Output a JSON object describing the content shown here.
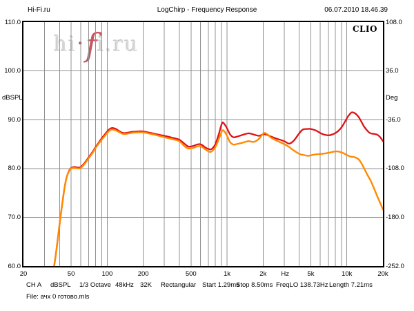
{
  "header": {
    "site": "Hi-Fi.ru",
    "title": "LogChirp - Frequency Response",
    "datetime": "06.07.2010 18.46.39"
  },
  "chart": {
    "brand": "CLIO",
    "y_left_unit": "dBSPL",
    "y_right_unit": "Deg",
    "watermark": {
      "pre": "hi",
      "dot": "·",
      "f": "f",
      "post": "i.ru"
    }
  },
  "chart_data": {
    "type": "line",
    "title": "LogChirp - Frequency Response",
    "grid": true,
    "grid_color": "#909090",
    "x_axis": {
      "scale": "log",
      "min": 20,
      "max": 20000,
      "unit": "Hz",
      "tick_labels": [
        {
          "label": "20",
          "f": 20
        },
        {
          "label": "50",
          "f": 50
        },
        {
          "label": "100",
          "f": 100
        },
        {
          "label": "200",
          "f": 200
        },
        {
          "label": "500",
          "f": 500
        },
        {
          "label": "1k",
          "f": 1000
        },
        {
          "label": "2k",
          "f": 2000
        },
        {
          "label": "Hz",
          "f": 3050
        },
        {
          "label": "5k",
          "f": 5000
        },
        {
          "label": "10k",
          "f": 10000
        },
        {
          "label": "20k",
          "f": 20000
        }
      ]
    },
    "y_axis_left": {
      "label": "dBSPL",
      "min": 60,
      "max": 110,
      "ticks": [
        110,
        100,
        90,
        80,
        70,
        60
      ],
      "tick_labels": [
        "110.0",
        "100.0",
        "90.0",
        "80.0",
        "70.0",
        "60.0"
      ]
    },
    "y_axis_right": {
      "label": "Deg",
      "min": -252,
      "max": 108,
      "ticks": [
        108,
        36,
        -36,
        -108,
        -180,
        -252
      ],
      "align_db": [
        110,
        100,
        90,
        80,
        70,
        60
      ],
      "tick_labels": [
        "108.0",
        "36.0",
        "-36.0",
        "-108.0",
        "-180.0",
        "-252.0"
      ]
    },
    "grid_freqs": [
      30,
      40,
      50,
      60,
      70,
      80,
      90,
      100,
      200,
      300,
      400,
      500,
      600,
      700,
      800,
      900,
      1000,
      2000,
      3000,
      4000,
      5000,
      6000,
      7000,
      8000,
      9000,
      10000
    ],
    "grid_dbs": [
      100,
      90,
      80,
      70
    ],
    "series": [
      {
        "name": "response-red",
        "color": "#e01115",
        "width": 2.3,
        "points": [
          [
            36,
            59.8
          ],
          [
            38,
            64
          ],
          [
            40,
            68.5
          ],
          [
            42,
            72.5
          ],
          [
            44,
            76
          ],
          [
            46,
            78.3
          ],
          [
            48,
            79.5
          ],
          [
            50,
            80.1
          ],
          [
            53,
            80.3
          ],
          [
            57,
            80.2
          ],
          [
            60,
            80.3
          ],
          [
            65,
            81.2
          ],
          [
            70,
            82.3
          ],
          [
            75,
            83.3
          ],
          [
            80,
            84.4
          ],
          [
            85,
            85.3
          ],
          [
            90,
            86.2
          ],
          [
            95,
            86.9
          ],
          [
            100,
            87.6
          ],
          [
            105,
            88.1
          ],
          [
            110,
            88.3
          ],
          [
            118,
            88.1
          ],
          [
            127,
            87.6
          ],
          [
            135,
            87.3
          ],
          [
            145,
            87.3
          ],
          [
            160,
            87.5
          ],
          [
            180,
            87.6
          ],
          [
            200,
            87.6
          ],
          [
            230,
            87.3
          ],
          [
            260,
            87.0
          ],
          [
            300,
            86.7
          ],
          [
            350,
            86.3
          ],
          [
            400,
            85.9
          ],
          [
            440,
            85.1
          ],
          [
            475,
            84.5
          ],
          [
            520,
            84.6
          ],
          [
            560,
            84.9
          ],
          [
            590,
            85.0
          ],
          [
            620,
            84.8
          ],
          [
            660,
            84.3
          ],
          [
            700,
            84.0
          ],
          [
            730,
            83.9
          ],
          [
            760,
            84.2
          ],
          [
            800,
            85.0
          ],
          [
            850,
            86.9
          ],
          [
            910,
            89.3
          ],
          [
            950,
            89.1
          ],
          [
            1000,
            88.2
          ],
          [
            1060,
            87.0
          ],
          [
            1130,
            86.4
          ],
          [
            1200,
            86.5
          ],
          [
            1350,
            86.9
          ],
          [
            1500,
            87.2
          ],
          [
            1600,
            87.1
          ],
          [
            1700,
            86.9
          ],
          [
            1850,
            86.7
          ],
          [
            1950,
            86.9
          ],
          [
            2050,
            87.0
          ],
          [
            2200,
            86.8
          ],
          [
            2300,
            86.6
          ],
          [
            2600,
            86.1
          ],
          [
            3000,
            85.6
          ],
          [
            3300,
            85.1
          ],
          [
            3600,
            85.7
          ],
          [
            4000,
            87.2
          ],
          [
            4300,
            88.0
          ],
          [
            4700,
            88.1
          ],
          [
            5000,
            88.1
          ],
          [
            5500,
            87.8
          ],
          [
            6200,
            87.1
          ],
          [
            7000,
            86.8
          ],
          [
            7600,
            87.0
          ],
          [
            8300,
            87.5
          ],
          [
            9000,
            88.4
          ],
          [
            9600,
            89.5
          ],
          [
            10300,
            90.8
          ],
          [
            11000,
            91.5
          ],
          [
            11700,
            91.3
          ],
          [
            12500,
            90.6
          ],
          [
            13200,
            89.6
          ],
          [
            14000,
            88.5
          ],
          [
            15000,
            87.6
          ],
          [
            15800,
            87.2
          ],
          [
            16800,
            87.1
          ],
          [
            18000,
            86.9
          ],
          [
            19000,
            86.4
          ],
          [
            20000,
            85.6
          ]
        ]
      },
      {
        "name": "response-orange",
        "color": "#ff8a00",
        "width": 2.4,
        "points": [
          [
            36,
            59.8
          ],
          [
            38,
            64
          ],
          [
            40,
            68.5
          ],
          [
            42,
            72.5
          ],
          [
            44,
            76
          ],
          [
            46,
            78.3
          ],
          [
            48,
            79.4
          ],
          [
            50,
            80.0
          ],
          [
            53,
            80.1
          ],
          [
            57,
            80.0
          ],
          [
            60,
            80.1
          ],
          [
            65,
            81.0
          ],
          [
            70,
            82.1
          ],
          [
            75,
            83.1
          ],
          [
            80,
            84.2
          ],
          [
            85,
            85.1
          ],
          [
            90,
            85.9
          ],
          [
            95,
            86.6
          ],
          [
            100,
            87.3
          ],
          [
            105,
            87.8
          ],
          [
            110,
            88.0
          ],
          [
            118,
            87.8
          ],
          [
            127,
            87.4
          ],
          [
            135,
            87.1
          ],
          [
            145,
            87.1
          ],
          [
            160,
            87.3
          ],
          [
            180,
            87.4
          ],
          [
            200,
            87.4
          ],
          [
            230,
            87.1
          ],
          [
            260,
            86.8
          ],
          [
            300,
            86.4
          ],
          [
            350,
            86.0
          ],
          [
            400,
            85.6
          ],
          [
            440,
            84.6
          ],
          [
            475,
            84.1
          ],
          [
            520,
            84.2
          ],
          [
            560,
            84.5
          ],
          [
            590,
            84.6
          ],
          [
            620,
            84.4
          ],
          [
            660,
            83.9
          ],
          [
            700,
            83.5
          ],
          [
            730,
            83.4
          ],
          [
            760,
            83.7
          ],
          [
            800,
            84.4
          ],
          [
            850,
            85.9
          ],
          [
            910,
            87.7
          ],
          [
            950,
            87.6
          ],
          [
            1000,
            86.7
          ],
          [
            1060,
            85.4
          ],
          [
            1130,
            84.9
          ],
          [
            1200,
            85.0
          ],
          [
            1350,
            85.3
          ],
          [
            1500,
            85.6
          ],
          [
            1600,
            85.5
          ],
          [
            1700,
            85.5
          ],
          [
            1850,
            86.1
          ],
          [
            1950,
            86.8
          ],
          [
            2050,
            87.3
          ],
          [
            2200,
            86.9
          ],
          [
            2300,
            86.4
          ],
          [
            2600,
            85.7
          ],
          [
            3000,
            85.0
          ],
          [
            3300,
            84.4
          ],
          [
            3600,
            83.7
          ],
          [
            4000,
            83.0
          ],
          [
            4300,
            82.8
          ],
          [
            4700,
            82.6
          ],
          [
            5000,
            82.7
          ],
          [
            5500,
            82.9
          ],
          [
            6200,
            83.0
          ],
          [
            7000,
            83.2
          ],
          [
            7600,
            83.4
          ],
          [
            8300,
            83.5
          ],
          [
            9000,
            83.3
          ],
          [
            9600,
            83.0
          ],
          [
            10300,
            82.6
          ],
          [
            11000,
            82.4
          ],
          [
            11700,
            82.3
          ],
          [
            12500,
            81.9
          ],
          [
            13200,
            81.1
          ],
          [
            14000,
            79.9
          ],
          [
            15000,
            78.5
          ],
          [
            15800,
            77.5
          ],
          [
            16800,
            76.0
          ],
          [
            18000,
            74.2
          ],
          [
            19000,
            72.9
          ],
          [
            20000,
            71.6
          ]
        ]
      }
    ]
  },
  "status_bar": {
    "items": [
      {
        "text": "CH A",
        "x": 38
      },
      {
        "text": "dBSPL",
        "x": 73
      },
      {
        "text": "1/3 Octave",
        "x": 115
      },
      {
        "text": "48kHz",
        "x": 167
      },
      {
        "text": "32K",
        "x": 203
      },
      {
        "text": "Rectangular",
        "x": 233
      },
      {
        "text": "Start 1.29ms",
        "x": 293
      },
      {
        "text": "Stop 8.50ms",
        "x": 342
      },
      {
        "text": "FreqLO 138.73Hz",
        "x": 400
      },
      {
        "text": "Length 7.21ms",
        "x": 477
      }
    ]
  },
  "file_line": "File: ачх 0 готово.mls"
}
